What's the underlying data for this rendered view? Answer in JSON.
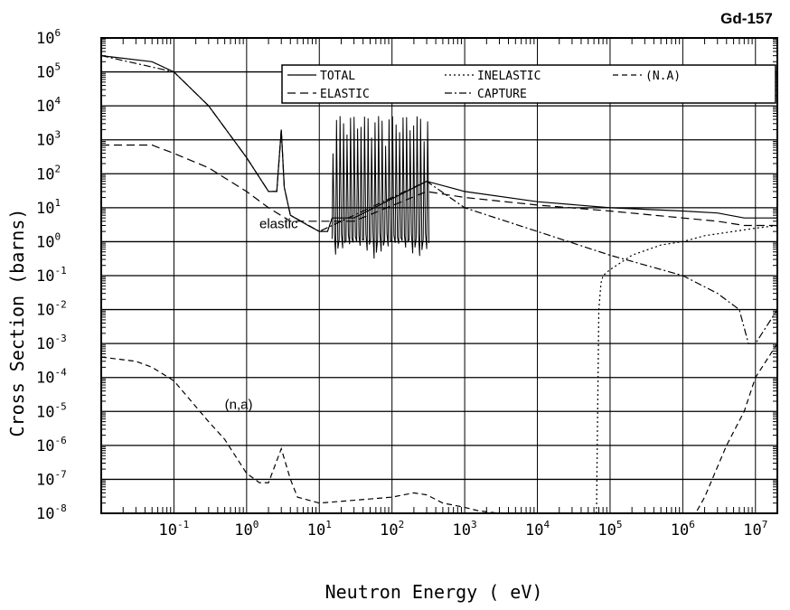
{
  "chart_data": {
    "type": "line",
    "title": "Gd-157",
    "xlabel": "Neutron Energy ( eV)",
    "ylabel": "Cross Section (barns)",
    "x_scale": "log",
    "y_scale": "log",
    "xlim": [
      0.01,
      20000000
    ],
    "ylim": [
      1e-08,
      1000000
    ],
    "grid": true,
    "legend_position": "top-right",
    "x_ticks": [
      {
        "value": 0.1,
        "base": "10",
        "exp": "-1"
      },
      {
        "value": 1,
        "base": "10",
        "exp": "0"
      },
      {
        "value": 10,
        "base": "10",
        "exp": "1"
      },
      {
        "value": 100,
        "base": "10",
        "exp": "2"
      },
      {
        "value": 1000,
        "base": "10",
        "exp": "3"
      },
      {
        "value": 10000,
        "base": "10",
        "exp": "4"
      },
      {
        "value": 100000,
        "base": "10",
        "exp": "5"
      },
      {
        "value": 1000000,
        "base": "10",
        "exp": "6"
      },
      {
        "value": 10000000,
        "base": "10",
        "exp": "7"
      }
    ],
    "y_ticks": [
      {
        "value": 1e-08,
        "base": "10",
        "exp": "-8"
      },
      {
        "value": 1e-07,
        "base": "10",
        "exp": "-7"
      },
      {
        "value": 1e-06,
        "base": "10",
        "exp": "-6"
      },
      {
        "value": 1e-05,
        "base": "10",
        "exp": "-5"
      },
      {
        "value": 0.0001,
        "base": "10",
        "exp": "-4"
      },
      {
        "value": 0.001,
        "base": "10",
        "exp": "-3"
      },
      {
        "value": 0.01,
        "base": "10",
        "exp": "-2"
      },
      {
        "value": 0.1,
        "base": "10",
        "exp": "-1"
      },
      {
        "value": 1,
        "base": "10",
        "exp": "0"
      },
      {
        "value": 10,
        "base": "10",
        "exp": "1"
      },
      {
        "value": 100,
        "base": "10",
        "exp": "2"
      },
      {
        "value": 1000,
        "base": "10",
        "exp": "3"
      },
      {
        "value": 10000,
        "base": "10",
        "exp": "4"
      },
      {
        "value": 100000,
        "base": "10",
        "exp": "5"
      },
      {
        "value": 1000000,
        "base": "10",
        "exp": "6"
      }
    ],
    "series": [
      {
        "name": "TOTAL",
        "dash": "solid",
        "x": [
          0.01,
          0.05,
          0.1,
          0.3,
          1,
          2,
          2.6,
          3,
          3.3,
          4,
          7,
          10,
          13,
          15,
          20,
          30,
          300,
          1000,
          10000,
          100000,
          1000000,
          3000000,
          7000000,
          20000000
        ],
        "y": [
          300000,
          200000,
          100000,
          10000,
          300,
          30,
          30,
          2000,
          40,
          6,
          3,
          2,
          2,
          5,
          5,
          5,
          60,
          30,
          15,
          10,
          8,
          7,
          5,
          5
        ]
      },
      {
        "name": "ELASTIC",
        "dash": "long-dash",
        "x": [
          0.01,
          0.05,
          0.1,
          0.3,
          1,
          2,
          4,
          10,
          15,
          20,
          30,
          300,
          1000,
          10000,
          100000,
          1000000,
          3000000,
          7000000,
          10000000,
          20000000
        ],
        "y": [
          700,
          700,
          400,
          150,
          30,
          10,
          4,
          4,
          4,
          4,
          4,
          30,
          20,
          12,
          8,
          5,
          4,
          3,
          3,
          3
        ]
      },
      {
        "name": "CAPTURE",
        "dash": "dash-dot",
        "x": [
          0.01,
          0.1,
          0.3,
          1,
          2,
          2.6,
          3,
          3.3,
          4,
          10,
          300,
          1000,
          10000,
          100000,
          1000000,
          3000000,
          6000000,
          8000000,
          10000000,
          20000000
        ],
        "y": [
          300000,
          100000,
          10000,
          300,
          30,
          30,
          2000,
          40,
          6,
          2,
          60,
          10,
          2,
          0.4,
          0.1,
          0.03,
          0.01,
          0.001,
          0.001,
          0.01
        ]
      },
      {
        "name": "INELASTIC",
        "dash": "dotted",
        "x": [
          65000,
          70000,
          75000,
          80000,
          100000,
          200000,
          500000,
          1000000,
          2000000,
          5000000,
          10000000,
          20000000
        ],
        "y": [
          1e-08,
          0.01,
          0.06,
          0.1,
          0.15,
          0.4,
          0.8,
          1,
          1.5,
          2,
          2.5,
          3
        ]
      },
      {
        "name": "(N.A)",
        "dash": "medium-dash",
        "x": [
          0.01,
          0.03,
          0.05,
          0.1,
          0.3,
          0.5,
          1,
          1.5,
          2,
          3,
          4,
          5,
          10,
          100,
          200,
          300,
          500,
          1000,
          1500,
          3000,
          10000,
          1500000,
          2000000,
          4000000,
          7000000,
          10000000,
          20000000
        ],
        "y": [
          0.0004,
          0.0003,
          0.0002,
          8e-05,
          5e-06,
          1.5e-06,
          1.5e-07,
          8e-08,
          8e-08,
          8e-07,
          1e-07,
          3e-08,
          2e-08,
          3e-08,
          4e-08,
          3.5e-08,
          2e-08,
          1.5e-08,
          1.2e-08,
          1e-08,
          1e-08,
          1e-08,
          3e-08,
          1e-06,
          1e-05,
          0.0001,
          0.001
        ]
      }
    ],
    "resonances": {
      "x_range": [
        15,
        300
      ],
      "count": 28,
      "peak_max": 5000,
      "trough_min": 0.3
    },
    "annotations": [
      {
        "text": "elastic",
        "x": 1.5,
        "y": 2.5
      },
      {
        "text": "(n,a)",
        "x": 0.5,
        "y": 1.2e-05
      }
    ]
  }
}
